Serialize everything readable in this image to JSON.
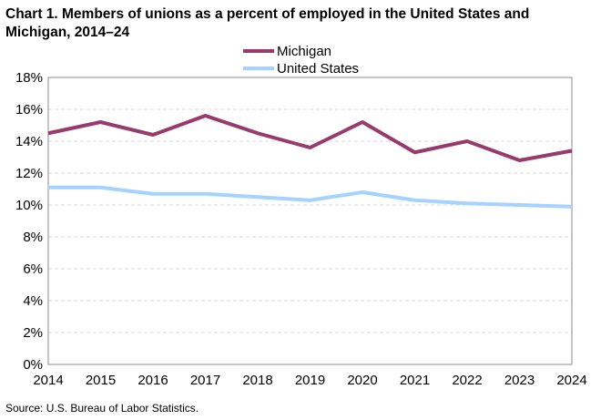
{
  "chart_data": {
    "type": "line",
    "title": "Chart 1. Members of unions as a percent of employed  in the United States and Michigan,  2014–24",
    "xlabel": "",
    "ylabel": "",
    "x": [
      "2014",
      "2015",
      "2016",
      "2017",
      "2018",
      "2019",
      "2020",
      "2021",
      "2022",
      "2023",
      "2024"
    ],
    "ylim": [
      0,
      18
    ],
    "yticks": [
      0,
      2,
      4,
      6,
      8,
      10,
      12,
      14,
      16,
      18
    ],
    "ytick_labels": [
      "0%",
      "2%",
      "4%",
      "6%",
      "8%",
      "10%",
      "12%",
      "14%",
      "16%",
      "18%"
    ],
    "grid": true,
    "legend_position": "top-center",
    "series": [
      {
        "name": "Michigan",
        "color": "#963b6b",
        "values": [
          14.5,
          15.2,
          14.4,
          15.6,
          14.5,
          13.6,
          15.2,
          13.3,
          14.0,
          12.8,
          13.4
        ]
      },
      {
        "name": "United States",
        "color": "#a6d2ff",
        "values": [
          11.1,
          11.1,
          10.7,
          10.7,
          10.5,
          10.3,
          10.8,
          10.3,
          10.1,
          10.0,
          9.9
        ]
      }
    ]
  },
  "source": "Source:  U.S. Bureau  of Labor Statistics."
}
